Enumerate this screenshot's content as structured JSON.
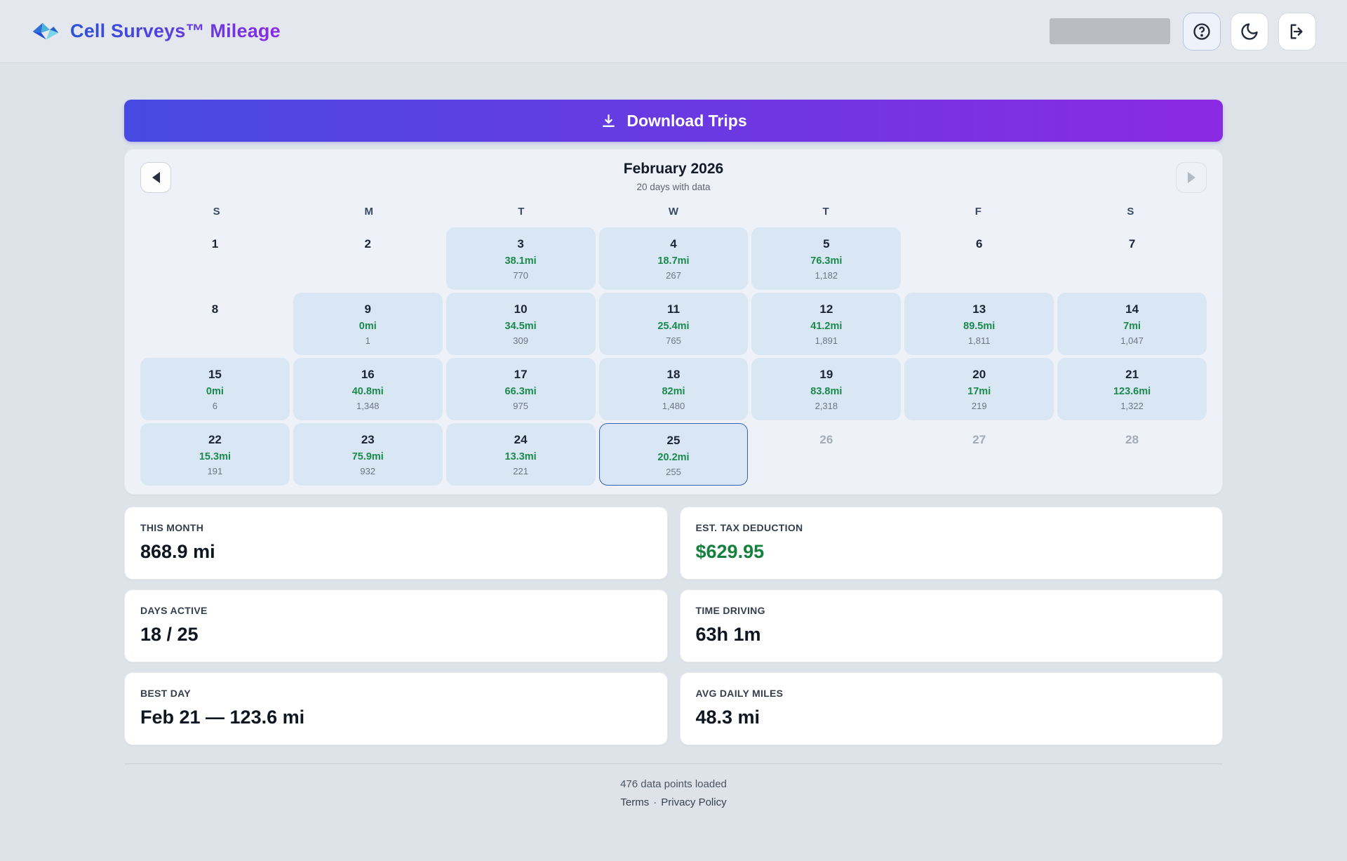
{
  "app": {
    "title": "Cell Surveys™ Mileage"
  },
  "header_icons": [
    "help-icon",
    "moon-icon",
    "logout-icon"
  ],
  "toolbar": {
    "download_label": "Download Trips"
  },
  "calendar": {
    "title": "February 2026",
    "subtitle": "20 days with data",
    "weekdays": [
      "S",
      "M",
      "T",
      "W",
      "T",
      "F",
      "S"
    ],
    "selected_day": 25,
    "days": [
      {
        "day": 1
      },
      {
        "day": 2
      },
      {
        "day": 3,
        "miles": "38.1mi",
        "points": "770"
      },
      {
        "day": 4,
        "miles": "18.7mi",
        "points": "267"
      },
      {
        "day": 5,
        "miles": "76.3mi",
        "points": "1,182"
      },
      {
        "day": 6
      },
      {
        "day": 7
      },
      {
        "day": 8
      },
      {
        "day": 9,
        "miles": "0mi",
        "points": "1"
      },
      {
        "day": 10,
        "miles": "34.5mi",
        "points": "309"
      },
      {
        "day": 11,
        "miles": "25.4mi",
        "points": "765"
      },
      {
        "day": 12,
        "miles": "41.2mi",
        "points": "1,891"
      },
      {
        "day": 13,
        "miles": "89.5mi",
        "points": "1,811"
      },
      {
        "day": 14,
        "miles": "7mi",
        "points": "1,047"
      },
      {
        "day": 15,
        "miles": "0mi",
        "points": "6"
      },
      {
        "day": 16,
        "miles": "40.8mi",
        "points": "1,348"
      },
      {
        "day": 17,
        "miles": "66.3mi",
        "points": "975"
      },
      {
        "day": 18,
        "miles": "82mi",
        "points": "1,480"
      },
      {
        "day": 19,
        "miles": "83.8mi",
        "points": "2,318"
      },
      {
        "day": 20,
        "miles": "17mi",
        "points": "219"
      },
      {
        "day": 21,
        "miles": "123.6mi",
        "points": "1,322"
      },
      {
        "day": 22,
        "miles": "15.3mi",
        "points": "191"
      },
      {
        "day": 23,
        "miles": "75.9mi",
        "points": "932"
      },
      {
        "day": 24,
        "miles": "13.3mi",
        "points": "221"
      },
      {
        "day": 25,
        "miles": "20.2mi",
        "points": "255",
        "selected": true
      },
      {
        "day": 26,
        "future": true
      },
      {
        "day": 27,
        "future": true
      },
      {
        "day": 28,
        "future": true
      }
    ]
  },
  "stats": [
    {
      "label": "THIS MONTH",
      "value": "868.9 mi"
    },
    {
      "label": "EST. TAX DEDUCTION",
      "value": "$629.95",
      "accent": "green"
    },
    {
      "label": "DAYS ACTIVE",
      "value": "18 / 25"
    },
    {
      "label": "TIME DRIVING",
      "value": "63h 1m"
    },
    {
      "label": "BEST DAY",
      "value": "Feb 21 — 123.6 mi"
    },
    {
      "label": "AVG DAILY MILES",
      "value": "48.3 mi"
    }
  ],
  "footer": {
    "status": "476 data points loaded",
    "links": [
      "Terms",
      "Privacy Policy"
    ],
    "separator": "·"
  },
  "colors": {
    "gradient_start": "#4649e2",
    "gradient_end": "#8b2ae3",
    "title_gradient_start": "#2b52d8",
    "title_gradient_end": "#8a2be2",
    "miles_green": "#1a8a4c",
    "tax_green": "#15803d",
    "selected_border": "#2f63ba",
    "day_data_bg": "#d9e6f3",
    "page_bg": "#dee3ea"
  }
}
